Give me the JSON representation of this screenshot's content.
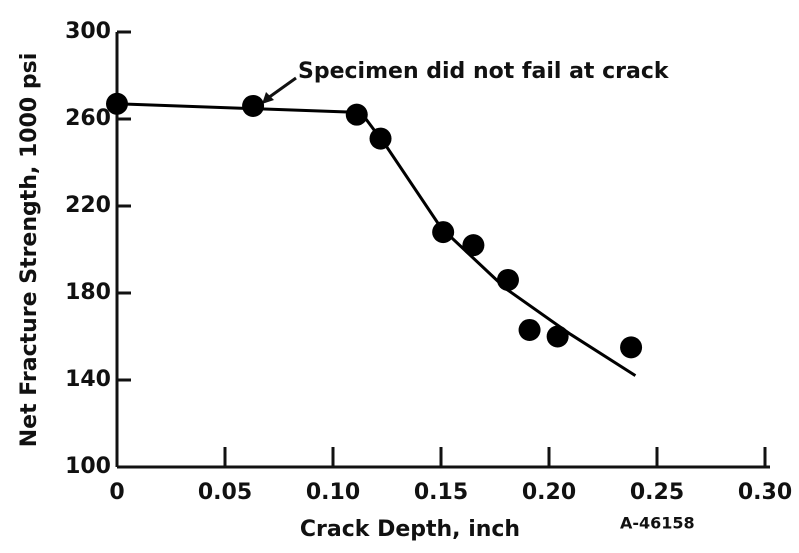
{
  "chart_data": {
    "type": "scatter",
    "xlabel": "Crack Depth, inch",
    "ylabel": "Net Fracture Strength, 1000 psi",
    "annotation": "Specimen did not fail at crack",
    "figure_id": "A-46158",
    "series": [
      {
        "x": [
          0,
          0.063,
          0.111,
          0.122,
          0.151,
          0.165,
          0.181,
          0.191,
          0.204,
          0.238
        ],
        "values": [
          267,
          266,
          262,
          251,
          208,
          202,
          186,
          163,
          160,
          155
        ],
        "color": "#000000"
      }
    ],
    "fit_line": {
      "x": [
        0,
        0.113,
        0.125,
        0.15,
        0.18,
        0.21,
        0.24
      ],
      "values": [
        267,
        263,
        247,
        210,
        182,
        161,
        142
      ],
      "color": "#000000"
    },
    "xlim": [
      0,
      0.3
    ],
    "ylim": [
      100,
      300
    ],
    "xticks": [
      0,
      0.05,
      {
        "value": 0.1,
        "label": "0.10"
      },
      0.15,
      {
        "value": 0.2,
        "label": "0.20"
      },
      0.25,
      {
        "value": 0.3,
        "label": "0.30"
      }
    ],
    "yticks": [
      100,
      140,
      180,
      220,
      260,
      300
    ]
  }
}
